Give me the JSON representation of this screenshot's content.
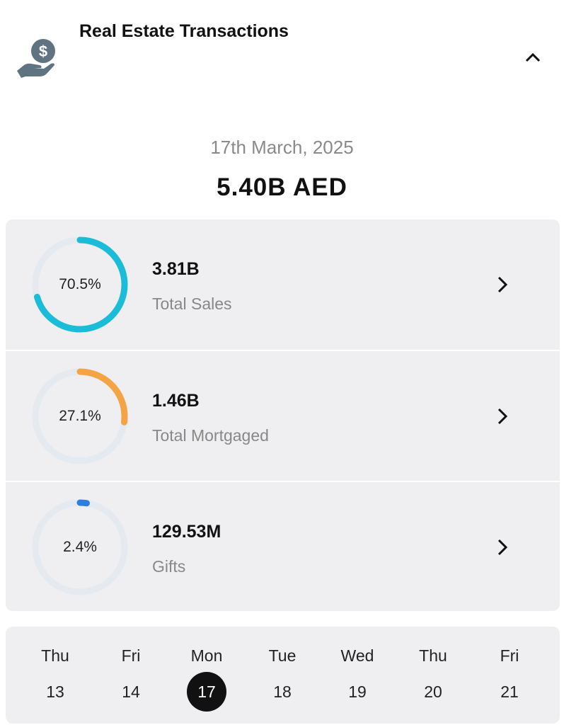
{
  "header": {
    "title": "Real Estate Transactions",
    "icon": "money-hand-icon",
    "collapse_icon": "chevron-up-icon"
  },
  "summary": {
    "date": "17th March, 2025",
    "total": "5.40B AED"
  },
  "rows": [
    {
      "percent_label": "70.5%",
      "percent": 70.5,
      "value": "3.81B",
      "label": "Total Sales",
      "color": "#1bbcd8"
    },
    {
      "percent_label": "27.1%",
      "percent": 27.1,
      "value": "1.46B",
      "label": "Total Mortgaged",
      "color": "#f5a445"
    },
    {
      "percent_label": "2.4%",
      "percent": 2.4,
      "value": "129.53M",
      "label": "Gifts",
      "color": "#2a7fe0"
    }
  ],
  "calendar": {
    "selected": "17",
    "days": [
      {
        "name": "Thu",
        "date": "13"
      },
      {
        "name": "Fri",
        "date": "14"
      },
      {
        "name": "Mon",
        "date": "17"
      },
      {
        "name": "Tue",
        "date": "18"
      },
      {
        "name": "Wed",
        "date": "19"
      },
      {
        "name": "Thu",
        "date": "20"
      },
      {
        "name": "Fri",
        "date": "21"
      }
    ]
  }
}
